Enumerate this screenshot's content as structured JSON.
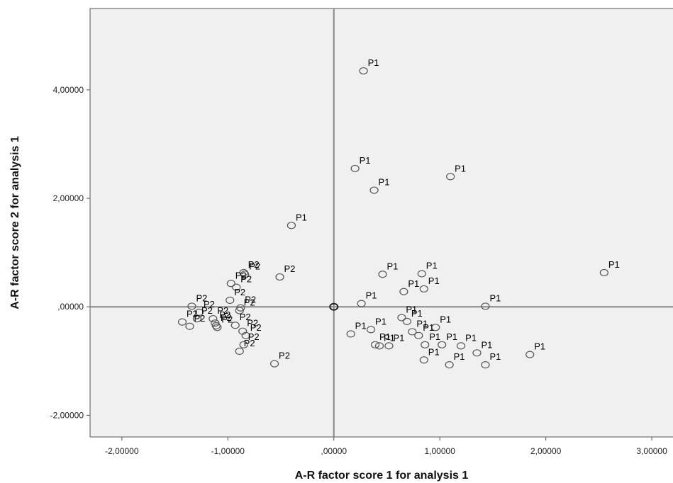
{
  "chart_data": {
    "type": "scatter",
    "xlabel": "A-R  factor score   1 for analysis 1",
    "ylabel": "A-R  factor score   2 for analysis 1",
    "xlim": [
      -2.3,
      3.2
    ],
    "ylim": [
      -2.4,
      5.5
    ],
    "x_ticks": [
      {
        "value": -2,
        "label": "-2,00000"
      },
      {
        "value": -1,
        "label": "-1,00000"
      },
      {
        "value": 0,
        "label": ",00000"
      },
      {
        "value": 1,
        "label": "1,00000"
      },
      {
        "value": 2,
        "label": "2,00000"
      },
      {
        "value": 3,
        "label": "3,00000"
      }
    ],
    "y_ticks": [
      {
        "value": -2,
        "label": "-2,00000"
      },
      {
        "value": 0,
        "label": ",00000"
      },
      {
        "value": 2,
        "label": "2,00000"
      },
      {
        "value": 4,
        "label": "4,00000"
      }
    ],
    "reference_lines": {
      "x": 0,
      "y": 0
    },
    "grid": false,
    "colors": {
      "plot_bg": "#f0f0f0",
      "marker_stroke": "#555555",
      "reference_line": "#888888",
      "frame": "#555555"
    },
    "points": [
      {
        "x": 0.28,
        "y": 4.35,
        "label": "P1"
      },
      {
        "x": 0.2,
        "y": 2.55,
        "label": "P1"
      },
      {
        "x": 1.1,
        "y": 2.4,
        "label": "P1"
      },
      {
        "x": 0.38,
        "y": 2.15,
        "label": "P1"
      },
      {
        "x": -0.4,
        "y": 1.5,
        "label": "P1"
      },
      {
        "x": 2.55,
        "y": 0.63,
        "label": "P1"
      },
      {
        "x": 0.46,
        "y": 0.6,
        "label": "P1"
      },
      {
        "x": 0.83,
        "y": 0.61,
        "label": "P1"
      },
      {
        "x": 0.85,
        "y": 0.33,
        "label": "P1"
      },
      {
        "x": 0.66,
        "y": 0.28,
        "label": "P1"
      },
      {
        "x": 0.26,
        "y": 0.06,
        "label": "P1"
      },
      {
        "x": 1.43,
        "y": 0.01,
        "label": "P1"
      },
      {
        "x": 0.64,
        "y": -0.2,
        "label": "P1"
      },
      {
        "x": 0.69,
        "y": -0.27,
        "label": "P1"
      },
      {
        "x": 0.96,
        "y": -0.38,
        "label": "P1"
      },
      {
        "x": 0.35,
        "y": -0.42,
        "label": "P1"
      },
      {
        "x": 0.74,
        "y": -0.46,
        "label": "P1"
      },
      {
        "x": 0.16,
        "y": -0.5,
        "label": "P1"
      },
      {
        "x": 0.8,
        "y": -0.53,
        "label": "P1"
      },
      {
        "x": 0.39,
        "y": -0.7,
        "label": "P1"
      },
      {
        "x": 0.43,
        "y": -0.72,
        "label": "P1"
      },
      {
        "x": 0.52,
        "y": -0.72,
        "label": "P1"
      },
      {
        "x": 0.86,
        "y": -0.7,
        "label": "P1"
      },
      {
        "x": 1.02,
        "y": -0.7,
        "label": "P1"
      },
      {
        "x": 1.2,
        "y": -0.72,
        "label": "P1"
      },
      {
        "x": 1.35,
        "y": -0.85,
        "label": "P1"
      },
      {
        "x": 1.85,
        "y": -0.88,
        "label": "P1"
      },
      {
        "x": 0.85,
        "y": -0.98,
        "label": "P1"
      },
      {
        "x": 1.09,
        "y": -1.07,
        "label": "P1"
      },
      {
        "x": 1.43,
        "y": -1.07,
        "label": "P1"
      },
      {
        "x": -0.85,
        "y": 0.63,
        "label": "P2"
      },
      {
        "x": -0.84,
        "y": 0.6,
        "label": "P2"
      },
      {
        "x": -0.51,
        "y": 0.55,
        "label": "P2"
      },
      {
        "x": -0.97,
        "y": 0.43,
        "label": "P2"
      },
      {
        "x": -0.92,
        "y": 0.36,
        "label": "P2"
      },
      {
        "x": -0.98,
        "y": 0.12,
        "label": "P2"
      },
      {
        "x": -0.88,
        "y": -0.02,
        "label": "P2"
      },
      {
        "x": -0.89,
        "y": -0.07,
        "label": "P2"
      },
      {
        "x": -1.34,
        "y": 0.01,
        "label": "P2"
      },
      {
        "x": -1.27,
        "y": -0.1,
        "label": "P2"
      },
      {
        "x": -1.14,
        "y": -0.22,
        "label": "P2"
      },
      {
        "x": -1.29,
        "y": -0.22,
        "label": "P2"
      },
      {
        "x": -1.43,
        "y": -0.28,
        "label": "P2"
      },
      {
        "x": -1.12,
        "y": -0.3,
        "label": "P2"
      },
      {
        "x": -1.11,
        "y": -0.35,
        "label": "P2"
      },
      {
        "x": -1.1,
        "y": -0.38,
        "label": "P2"
      },
      {
        "x": -1.36,
        "y": -0.36,
        "label": "P2"
      },
      {
        "x": -0.93,
        "y": -0.34,
        "label": "P2"
      },
      {
        "x": -0.86,
        "y": -0.45,
        "label": "P2"
      },
      {
        "x": -0.83,
        "y": -0.53,
        "label": "P2"
      },
      {
        "x": -0.85,
        "y": -0.7,
        "label": "P2"
      },
      {
        "x": -0.89,
        "y": -0.82,
        "label": "P2"
      },
      {
        "x": -0.56,
        "y": -1.05,
        "label": "P2"
      }
    ],
    "centroid": {
      "x": 0,
      "y": 0
    }
  }
}
